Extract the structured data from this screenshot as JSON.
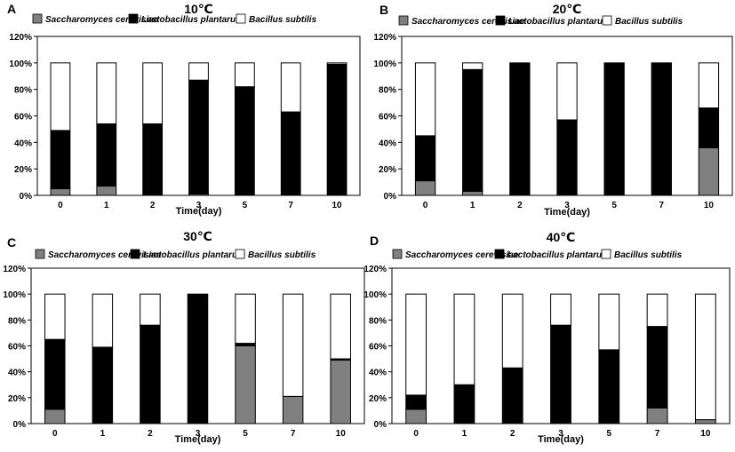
{
  "chart_data": [
    {
      "panel_label": "A",
      "type": "bar",
      "stacked": true,
      "title": "10℃",
      "xlabel": "Time(day)",
      "ylabel": "",
      "categories": [
        "0",
        "1",
        "2",
        "3",
        "5",
        "7",
        "10"
      ],
      "ylim": [
        0,
        120
      ],
      "yticks": [
        "0%",
        "20%",
        "40%",
        "60%",
        "80%",
        "100%",
        "120%"
      ],
      "legend": "top",
      "series": [
        {
          "name": "Saccharomyces cerevisiae",
          "color": "#808080",
          "values": [
            5,
            7,
            0,
            1,
            0,
            0,
            0
          ]
        },
        {
          "name": "Lactobacillus plantarum",
          "color": "#000000",
          "values": [
            44,
            47,
            54,
            86,
            82,
            63,
            99
          ]
        },
        {
          "name": "Bacillus subtilis",
          "color": "#ffffff",
          "values": [
            51,
            46,
            46,
            13,
            18,
            37,
            1
          ]
        }
      ]
    },
    {
      "panel_label": "B",
      "type": "bar",
      "stacked": true,
      "title": "20℃",
      "xlabel": "Time(day)",
      "ylabel": "",
      "categories": [
        "0",
        "1",
        "2",
        "3",
        "5",
        "7",
        "10"
      ],
      "ylim": [
        0,
        120
      ],
      "yticks": [
        "0%",
        "20%",
        "40%",
        "60%",
        "80%",
        "100%",
        "120%"
      ],
      "legend": "top",
      "series": [
        {
          "name": "Saccharomyces cerevisiae",
          "color": "#808080",
          "values": [
            11,
            3,
            0,
            0,
            0,
            0,
            36
          ]
        },
        {
          "name": "Lactobacillus plantarum",
          "color": "#000000",
          "values": [
            34,
            92,
            100,
            57,
            100,
            100,
            30
          ]
        },
        {
          "name": "Bacillus subtilis",
          "color": "#ffffff",
          "values": [
            55,
            5,
            0,
            43,
            0,
            0,
            34
          ]
        }
      ]
    },
    {
      "panel_label": "C",
      "type": "bar",
      "stacked": true,
      "title": "30℃",
      "xlabel": "Time(day)",
      "ylabel": "",
      "categories": [
        "0",
        "1",
        "2",
        "3",
        "5",
        "7",
        "10"
      ],
      "ylim": [
        0,
        120
      ],
      "yticks": [
        "0%",
        "20%",
        "40%",
        "60%",
        "80%",
        "100%",
        "120%"
      ],
      "legend": "top",
      "series": [
        {
          "name": "Saccharomyces cerevisiae",
          "color": "#808080",
          "values": [
            11,
            0,
            0,
            0,
            60,
            21,
            49
          ]
        },
        {
          "name": "Lactobacillus plantarum",
          "color": "#000000",
          "values": [
            54,
            59,
            76,
            100,
            2,
            0,
            1
          ]
        },
        {
          "name": "Bacillus subtilis",
          "color": "#ffffff",
          "values": [
            35,
            41,
            24,
            0,
            38,
            79,
            50
          ]
        }
      ]
    },
    {
      "panel_label": "D",
      "type": "bar",
      "stacked": true,
      "title": "40℃",
      "xlabel": "Time(day)",
      "ylabel": "",
      "categories": [
        "0",
        "1",
        "2",
        "3",
        "5",
        "7",
        "10"
      ],
      "ylim": [
        0,
        120
      ],
      "yticks": [
        "0%",
        "20%",
        "40%",
        "60%",
        "80%",
        "100%",
        "120%"
      ],
      "legend": "top",
      "series": [
        {
          "name": "Saccharomyces cerevisiae",
          "color": "#808080",
          "values": [
            11,
            0,
            0,
            0,
            0,
            12,
            3
          ]
        },
        {
          "name": "Lactobacillus plantarum",
          "color": "#000000",
          "values": [
            11,
            30,
            43,
            76,
            57,
            63,
            0
          ]
        },
        {
          "name": "Bacillus subtilis",
          "color": "#ffffff",
          "values": [
            78,
            70,
            57,
            24,
            43,
            25,
            97
          ]
        }
      ]
    }
  ]
}
